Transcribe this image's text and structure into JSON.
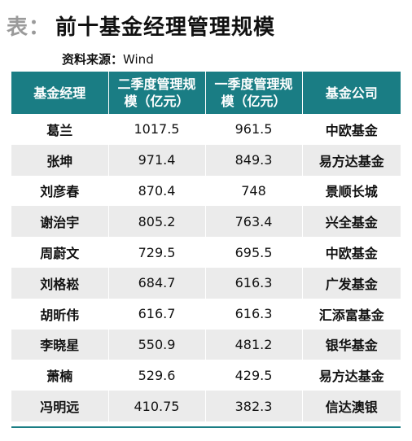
{
  "title": {
    "prefix": "表：",
    "text": "前十基金经理管理规模"
  },
  "source": {
    "label": "资料来源：",
    "value": "Wind"
  },
  "table": {
    "headers": [
      "基金经理",
      "二季度管理规模（亿元）",
      "一季度管理规模（亿元）",
      "基金公司"
    ],
    "rows": [
      [
        "葛兰",
        "1017.5",
        "961.5",
        "中欧基金"
      ],
      [
        "张坤",
        "971.4",
        "849.3",
        "易方达基金"
      ],
      [
        "刘彦春",
        "870.4",
        "748",
        "景顺长城"
      ],
      [
        "谢治宇",
        "805.2",
        "763.4",
        "兴全基金"
      ],
      [
        "周蔚文",
        "729.5",
        "695.5",
        "中欧基金"
      ],
      [
        "刘格崧",
        "684.7",
        "616.3",
        "广发基金"
      ],
      [
        "胡昕伟",
        "616.7",
        "616.3",
        "汇添富基金"
      ],
      [
        "李晓星",
        "550.9",
        "481.2",
        "银华基金"
      ],
      [
        "萧楠",
        "529.6",
        "429.5",
        "易方达基金"
      ],
      [
        "冯明远",
        "410.75",
        "382.3",
        "信达澳银"
      ]
    ]
  }
}
